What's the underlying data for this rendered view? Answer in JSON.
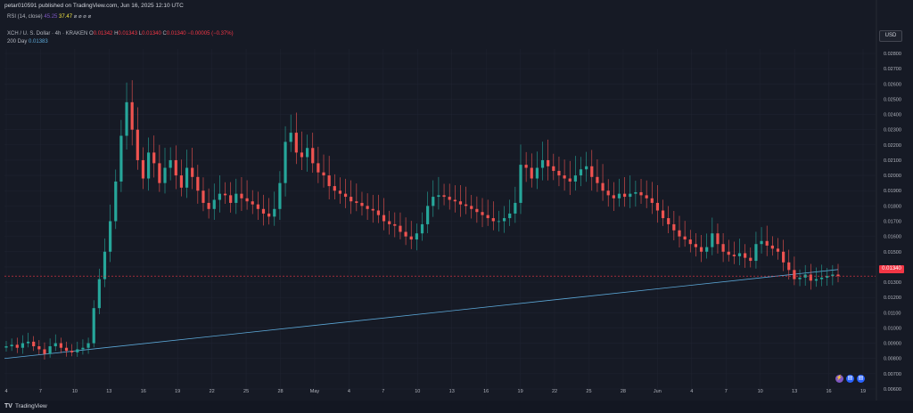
{
  "header": {
    "published": "petar010591 published on TradingView.com, Jun 16, 2025 12:10 UTC"
  },
  "rsi": {
    "label": "RSI (14, close)",
    "value1": "45.25",
    "value2": "37.47",
    "icons": "⌀ ⌀ ⌀ ⌀"
  },
  "legend": {
    "symbol": "XCH / U. S. Dollar · 4h · KRAKEN",
    "o_label": "O",
    "o_value": "0.01342",
    "h_label": "H",
    "h_value": "0.01343",
    "l_label": "L",
    "l_value": "0.01340",
    "c_label": "C",
    "c_value": "0.01340",
    "change": "−0.00005 (−0.37%)",
    "ma_label": "200 Day",
    "ma_value": "0.01383"
  },
  "currency_button": "USD",
  "current_price_tag": "0.01340",
  "footer": {
    "brand": "TradingView"
  },
  "colors": {
    "background": "#161a25",
    "up": "#26a69a",
    "down": "#ef5350",
    "ma_line": "#5ca8d8",
    "price_line": "#f23645",
    "grid": "#1f2330"
  },
  "chart_data": {
    "type": "candlestick",
    "title": "XCH / U. S. Dollar · 4h · KRAKEN",
    "ylim": [
      0.006,
      0.028
    ],
    "y_ticks": [
      "0.02800",
      "0.02700",
      "0.02600",
      "0.02500",
      "0.02400",
      "0.02300",
      "0.02200",
      "0.02100",
      "0.02000",
      "0.01900",
      "0.01800",
      "0.01700",
      "0.01600",
      "0.01500",
      "0.01400",
      "0.01300",
      "0.01200",
      "0.01100",
      "0.01000",
      "0.00900",
      "0.00800",
      "0.00700",
      "0.00600"
    ],
    "x_ticks": [
      "4",
      "7",
      "10",
      "13",
      "16",
      "19",
      "22",
      "25",
      "28",
      "May",
      "4",
      "7",
      "10",
      "13",
      "16",
      "19",
      "22",
      "25",
      "28",
      "Jun",
      "4",
      "7",
      "10",
      "13",
      "16",
      "19"
    ],
    "grid": true,
    "close_series": [
      0.0088,
      0.0089,
      0.0087,
      0.009,
      0.0091,
      0.0088,
      0.0086,
      0.0083,
      0.0088,
      0.009,
      0.0087,
      0.0085,
      0.0084,
      0.0086,
      0.0087,
      0.009,
      0.0113,
      0.0132,
      0.015,
      0.017,
      0.0196,
      0.0226,
      0.0248,
      0.023,
      0.021,
      0.0198,
      0.0215,
      0.0208,
      0.0195,
      0.0205,
      0.021,
      0.02,
      0.0192,
      0.0205,
      0.0199,
      0.019,
      0.0182,
      0.0178,
      0.0184,
      0.0188,
      0.0187,
      0.0182,
      0.0188,
      0.0185,
      0.0183,
      0.0181,
      0.0178,
      0.0175,
      0.0173,
      0.0178,
      0.0195,
      0.0222,
      0.0228,
      0.0215,
      0.0212,
      0.0218,
      0.0208,
      0.0202,
      0.02,
      0.0193,
      0.019,
      0.0188,
      0.0186,
      0.0183,
      0.0182,
      0.018,
      0.0178,
      0.0177,
      0.0174,
      0.017,
      0.0168,
      0.0167,
      0.0163,
      0.016,
      0.0158,
      0.0162,
      0.0168,
      0.018,
      0.0186,
      0.0187,
      0.0186,
      0.0184,
      0.0183,
      0.0181,
      0.018,
      0.0178,
      0.0176,
      0.0174,
      0.0172,
      0.017,
      0.017,
      0.0172,
      0.0175,
      0.0182,
      0.0207,
      0.0205,
      0.0198,
      0.0205,
      0.021,
      0.0206,
      0.0203,
      0.02,
      0.0198,
      0.0196,
      0.02,
      0.0204,
      0.0206,
      0.0199,
      0.0195,
      0.019,
      0.0187,
      0.0185,
      0.0188,
      0.0186,
      0.0188,
      0.0189,
      0.0187,
      0.0185,
      0.0182,
      0.0177,
      0.0172,
      0.0168,
      0.0164,
      0.016,
      0.0158,
      0.0155,
      0.0153,
      0.015,
      0.0153,
      0.0162,
      0.0155,
      0.015,
      0.0148,
      0.0147,
      0.0149,
      0.0146,
      0.0144,
      0.0155,
      0.0157,
      0.0154,
      0.0152,
      0.015,
      0.0143,
      0.0138,
      0.0132,
      0.0133,
      0.0135,
      0.0131,
      0.0132,
      0.0133,
      0.0134,
      0.0135,
      0.0134
    ],
    "ma200_start": 0.008,
    "ma200_end": 0.01383,
    "last_price": 0.0134
  }
}
